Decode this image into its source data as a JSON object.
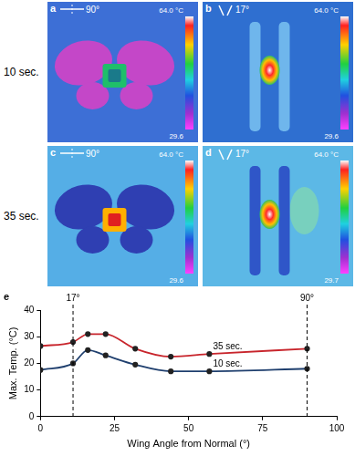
{
  "rows": [
    "10 sec.",
    "35 sec."
  ],
  "panels": [
    {
      "label": "a",
      "angle": "90°",
      "colorbar": {
        "max": "64.0 °C",
        "min": "29.6"
      }
    },
    {
      "label": "b",
      "angle": "17°",
      "colorbar": {
        "max": "64.0 °C",
        "min": "29.6"
      }
    },
    {
      "label": "c",
      "angle": "90°",
      "colorbar": {
        "max": "64.0 °C",
        "min": "29.6"
      }
    },
    {
      "label": "d",
      "angle": "17°",
      "colorbar": {
        "max": "64.0 °C",
        "min": "29.7"
      }
    }
  ],
  "chart_data": {
    "type": "line",
    "panel_label": "e",
    "xlabel": "Wing Angle from Normal (°)",
    "ylabel": "Max. Temp. (°C)",
    "x": [
      0,
      11,
      16,
      22,
      32,
      44,
      57,
      90
    ],
    "series": [
      {
        "name": "35 sec.",
        "color": "#c8252c",
        "values": [
          26.5,
          28,
          31,
          31,
          25.5,
          22.5,
          23.5,
          25.5
        ]
      },
      {
        "name": "10 sec.",
        "color": "#1f3f6e",
        "values": [
          17.5,
          20,
          25,
          23,
          19.5,
          17,
          17,
          18
        ]
      }
    ],
    "marker": "circle",
    "xlim": [
      0,
      100
    ],
    "xticks": [
      0,
      25,
      50,
      75,
      100
    ],
    "ylim": [
      0,
      40
    ],
    "yticks": [
      0,
      10,
      20,
      30,
      40
    ],
    "grid": false,
    "annotations": [
      {
        "x": 11,
        "label": "17°"
      },
      {
        "x": 90,
        "label": "90°"
      }
    ]
  }
}
